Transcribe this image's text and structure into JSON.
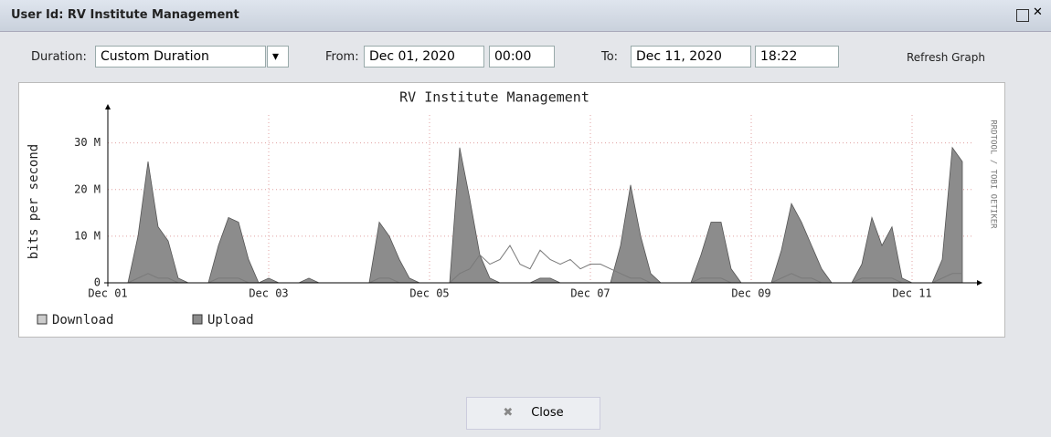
{
  "window": {
    "title": "User Id: RV Institute Management",
    "close_button": "Close"
  },
  "toolbar": {
    "duration_label": "Duration:",
    "duration_value": "Custom Duration",
    "from_label": "From:",
    "from_date": "Dec 01, 2020",
    "from_time": "00:00",
    "to_label": "To:",
    "to_date": "Dec 11, 2020",
    "to_time": "18:22",
    "refresh": "Refresh Graph"
  },
  "chart_data": {
    "type": "area",
    "title": "RV Institute Management",
    "y_label": "bits per second",
    "side_note": "RRDTOOL / TOBI OETIKER",
    "categories": [
      "Dec 01",
      null,
      null,
      null,
      null,
      null,
      null,
      null,
      null,
      null,
      null,
      null,
      null,
      null,
      null,
      null,
      "Dec 03",
      null,
      null,
      null,
      null,
      null,
      null,
      null,
      null,
      null,
      null,
      null,
      null,
      null,
      null,
      null,
      "Dec 05",
      null,
      null,
      null,
      null,
      null,
      null,
      null,
      null,
      null,
      null,
      null,
      null,
      null,
      null,
      null,
      "Dec 07",
      null,
      null,
      null,
      null,
      null,
      null,
      null,
      null,
      null,
      null,
      null,
      null,
      null,
      null,
      null,
      "Dec 09",
      null,
      null,
      null,
      null,
      null,
      null,
      null,
      null,
      null,
      null,
      null,
      null,
      null,
      null,
      null,
      "Dec 11",
      null,
      null,
      null,
      null,
      null
    ],
    "series": [
      {
        "name": "Download",
        "color": "#7a7a7a",
        "values": [
          0,
          0,
          0,
          1,
          2,
          1,
          1,
          0,
          0,
          0,
          0,
          1,
          1,
          1,
          0,
          0,
          0,
          0,
          0,
          0,
          0,
          0,
          0,
          0,
          0,
          0,
          0,
          1,
          1,
          0,
          0,
          0,
          0,
          0,
          0,
          2,
          3,
          6,
          4,
          5,
          8,
          4,
          3,
          7,
          5,
          4,
          5,
          3,
          4,
          4,
          3,
          2,
          1,
          1,
          0,
          0,
          0,
          0,
          0,
          1,
          1,
          1,
          0,
          0,
          0,
          0,
          0,
          1,
          2,
          1,
          1,
          0,
          0,
          0,
          0,
          1,
          1,
          1,
          1,
          0,
          0,
          0,
          0,
          1,
          2,
          2
        ]
      },
      {
        "name": "Upload",
        "color": "#8c8c8c",
        "values": [
          0,
          0,
          0,
          10,
          26,
          12,
          9,
          1,
          0,
          0,
          0,
          8,
          14,
          13,
          5,
          0,
          1,
          0,
          0,
          0,
          1,
          0,
          0,
          0,
          0,
          0,
          0,
          13,
          10,
          5,
          1,
          0,
          0,
          0,
          0,
          29,
          18,
          6,
          1,
          0,
          0,
          0,
          0,
          1,
          1,
          0,
          0,
          0,
          0,
          0,
          0,
          8,
          21,
          10,
          2,
          0,
          0,
          0,
          0,
          6,
          13,
          13,
          3,
          0,
          0,
          0,
          0,
          7,
          17,
          13,
          8,
          3,
          0,
          0,
          0,
          4,
          14,
          8,
          12,
          1,
          0,
          0,
          0,
          5,
          29,
          26
        ]
      }
    ],
    "ylim": [
      0,
      36
    ],
    "yticks": [
      0,
      {
        "value": 10,
        "label": "10 M"
      },
      {
        "value": 20,
        "label": "20 M"
      },
      {
        "value": 30,
        "label": "30 M"
      }
    ],
    "grid": true
  }
}
